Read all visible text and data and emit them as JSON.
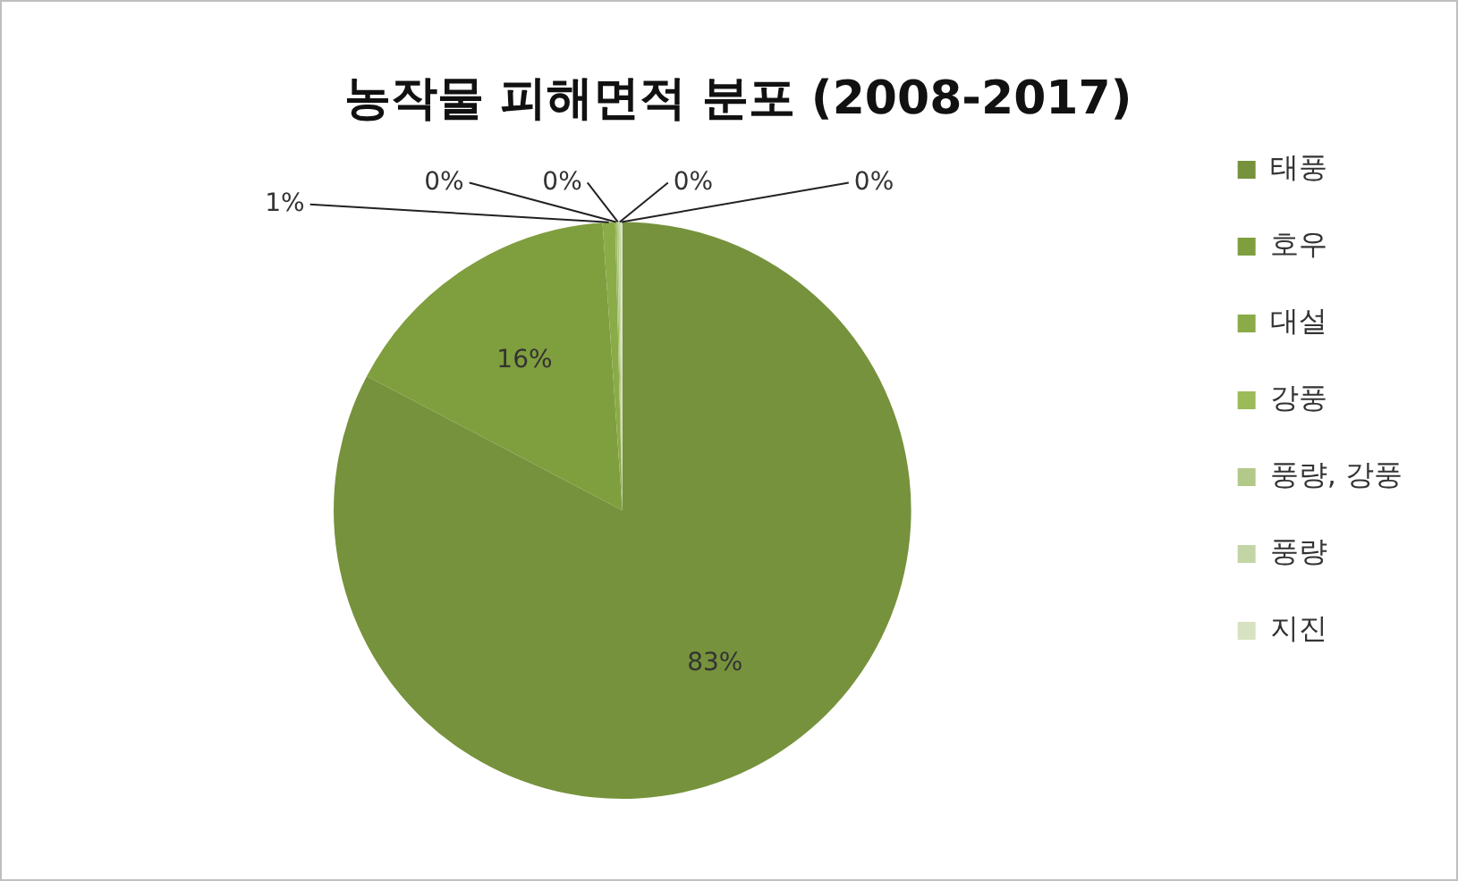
{
  "chart_data": {
    "type": "pie",
    "title": "농작물 피해면적 분포 (2008-2017)",
    "categories": [
      "태풍",
      "호우",
      "대설",
      "강풍",
      "풍량, 강풍",
      "풍량",
      "지진"
    ],
    "values": [
      82.7,
      16.2,
      0.7,
      0.1,
      0.1,
      0.1,
      0.1
    ],
    "value_labels": [
      "83%",
      "16%",
      "1%",
      "0%",
      "0%",
      "0%",
      "0%"
    ],
    "colors": [
      "#76923c",
      "#7f9e3e",
      "#8aab48",
      "#9bbb59",
      "#b3c98a",
      "#c4d5a5",
      "#d7e2c2"
    ],
    "legend": "right"
  }
}
